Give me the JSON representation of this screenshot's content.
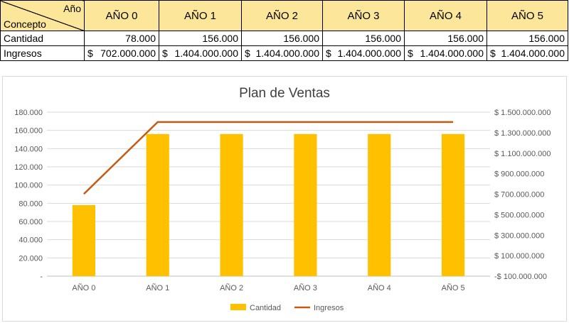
{
  "table": {
    "corner_top": "Año",
    "corner_bottom": "Concepto",
    "years": [
      "AÑO 0",
      "AÑO 1",
      "AÑO 2",
      "AÑO 3",
      "AÑO 4",
      "AÑO 5"
    ],
    "rows": [
      {
        "label": "Cantidad",
        "currency": "",
        "cells": [
          "78.000",
          "156.000",
          "156.000",
          "156.000",
          "156.000",
          "156.000"
        ]
      },
      {
        "label": "Ingresos",
        "currency": "$",
        "cells": [
          "702.000.000",
          "1.404.000.000",
          "1.404.000.000",
          "1.404.000.000",
          "1.404.000.000",
          "1.404.000.000"
        ]
      }
    ]
  },
  "colors": {
    "header_fill": "#fce69a",
    "bar": "#ffc000",
    "line": "#c55a11",
    "grid": "#d9d9d9"
  },
  "chart_data": {
    "type": "bar",
    "title": "Plan de Ventas",
    "categories": [
      "AÑO 0",
      "AÑO 1",
      "AÑO 2",
      "AÑO 3",
      "AÑO 4",
      "AÑO 5"
    ],
    "series": [
      {
        "name": "Cantidad",
        "type": "bar",
        "axis": "left",
        "values": [
          78000,
          156000,
          156000,
          156000,
          156000,
          156000
        ]
      },
      {
        "name": "Ingresos",
        "type": "line",
        "axis": "right",
        "values": [
          702000000,
          1404000000,
          1404000000,
          1404000000,
          1404000000,
          1404000000
        ]
      }
    ],
    "ylim_left": [
      0,
      180000
    ],
    "ylim_right": [
      -100000000,
      1500000000
    ],
    "yticks_left": [
      "-",
      "20.000",
      "40.000",
      "60.000",
      "80.000",
      "100.000",
      "120.000",
      "140.000",
      "160.000",
      "180.000"
    ],
    "yticks_right": [
      "-$ 100.000.000",
      "$ 100.000.000",
      "$ 300.000.000",
      "$ 500.000.000",
      "$ 700.000.000",
      "$ 900.000.000",
      "$ 1.100.000.000",
      "$ 1.300.000.000",
      "$ 1.500.000.000"
    ],
    "grid": true,
    "legend": "bottom",
    "xlabel": "",
    "ylabel": ""
  }
}
